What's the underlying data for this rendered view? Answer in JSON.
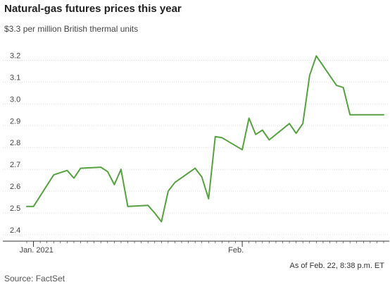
{
  "title": "Natural-gas futures prices this year",
  "subtitle": "$3.3 per million British thermal units",
  "footnote": "As of Feb. 22, 8:38 p.m. ET",
  "source": "Source: FactSet",
  "colors": {
    "line": "#57a042",
    "grid": "#dddddd",
    "axis": "#333333"
  },
  "chart_data": {
    "type": "line",
    "title": "Natural-gas futures prices this year",
    "ylabel": "$3.3 per million British thermal units",
    "xlabel": "",
    "ylim": [
      2.4,
      3.25
    ],
    "yticks": [
      "2.4",
      "2.5",
      "2.6",
      "2.7",
      "2.8",
      "2.9",
      "3.0",
      "3.1",
      "3.2"
    ],
    "xticks": [
      {
        "label": "Jan. 2021",
        "date": "2021-01-01"
      },
      {
        "label": "Feb.",
        "date": "2021-02-01"
      }
    ],
    "x_range": [
      "2020-12-31",
      "2021-02-22"
    ],
    "grid": true,
    "series": [
      {
        "x": [
          "2020-12-31",
          "2021-01-01",
          "2021-01-04",
          "2021-01-05",
          "2021-01-06",
          "2021-01-07",
          "2021-01-08",
          "2021-01-11",
          "2021-01-12",
          "2021-01-13",
          "2021-01-14",
          "2021-01-15",
          "2021-01-18",
          "2021-01-19",
          "2021-01-20",
          "2021-01-21",
          "2021-01-22",
          "2021-01-25",
          "2021-01-26",
          "2021-01-27",
          "2021-01-28",
          "2021-01-29",
          "2021-02-01",
          "2021-02-02",
          "2021-02-03",
          "2021-02-04",
          "2021-02-05",
          "2021-02-08",
          "2021-02-09",
          "2021-02-10",
          "2021-02-11",
          "2021-02-12",
          "2021-02-15",
          "2021-02-16",
          "2021-02-17",
          "2021-02-18",
          "2021-02-19",
          "2021-02-22"
        ],
        "values": [
          2.53,
          2.53,
          2.675,
          2.685,
          2.695,
          2.66,
          2.705,
          2.71,
          2.69,
          2.63,
          2.7,
          2.53,
          2.535,
          2.5,
          2.46,
          2.6,
          2.64,
          2.705,
          2.665,
          2.565,
          2.85,
          2.845,
          2.79,
          2.935,
          2.86,
          2.88,
          2.835,
          2.91,
          2.865,
          2.91,
          3.13,
          3.22,
          3.085,
          3.075,
          2.95,
          2.95,
          2.95,
          2.95
        ]
      }
    ]
  }
}
